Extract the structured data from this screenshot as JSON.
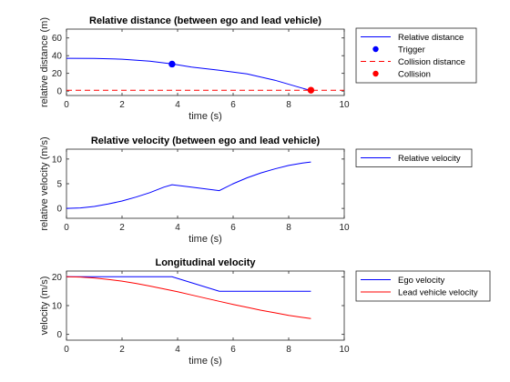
{
  "chart_data": [
    {
      "type": "line",
      "title": "Relative distance (between ego and lead vehicle)",
      "xlabel": "time (s)",
      "ylabel": "relative distance (m)",
      "xlim": [
        0,
        10
      ],
      "ylim": [
        -5,
        70
      ],
      "xticks": [
        0,
        2,
        4,
        6,
        8,
        10
      ],
      "yticks": [
        0,
        20,
        40,
        60
      ],
      "legend_position": "outside-right",
      "series": [
        {
          "name": "Relative distance",
          "style": "line",
          "color": "#0000ff",
          "x": [
            0,
            1,
            2,
            3,
            3.8,
            4.5,
            5.5,
            6.5,
            7.5,
            8.3,
            8.8
          ],
          "y": [
            37,
            36.9,
            36,
            33.8,
            30.6,
            27.2,
            23.6,
            19.3,
            12.3,
            5.0,
            0.5
          ]
        },
        {
          "name": "Trigger",
          "style": "marker",
          "color": "#0000ff",
          "x": [
            3.8
          ],
          "y": [
            30.5
          ]
        },
        {
          "name": "Collision distance",
          "style": "dashed",
          "color": "#ff0000",
          "x": [
            0,
            10
          ],
          "y": [
            1,
            1
          ]
        },
        {
          "name": "Collision",
          "style": "marker",
          "color": "#ff0000",
          "x": [
            8.8
          ],
          "y": [
            1
          ]
        }
      ]
    },
    {
      "type": "line",
      "title": "Relative velocity (between ego and lead vehicle)",
      "xlabel": "time (s)",
      "ylabel": "relative velocity (m/s)",
      "xlim": [
        0,
        10
      ],
      "ylim": [
        -2,
        12
      ],
      "xticks": [
        0,
        2,
        4,
        6,
        8,
        10
      ],
      "yticks": [
        0,
        5,
        10
      ],
      "legend_position": "outside-right",
      "series": [
        {
          "name": "Relative velocity",
          "style": "line",
          "color": "#0000ff",
          "x": [
            0,
            0.5,
            1,
            1.5,
            2,
            2.5,
            3,
            3.5,
            3.8,
            4.5,
            5.5,
            6,
            6.5,
            7,
            7.5,
            8,
            8.5,
            8.8
          ],
          "y": [
            0,
            0.1,
            0.4,
            0.9,
            1.5,
            2.3,
            3.2,
            4.3,
            4.8,
            4.3,
            3.6,
            5.0,
            6.2,
            7.2,
            8.0,
            8.7,
            9.2,
            9.4
          ]
        }
      ]
    },
    {
      "type": "line",
      "title": "Longitudinal velocity",
      "xlabel": "time (s)",
      "ylabel": "velocity (m/s)",
      "xlim": [
        0,
        10
      ],
      "ylim": [
        -2,
        22
      ],
      "xticks": [
        0,
        2,
        4,
        6,
        8,
        10
      ],
      "yticks": [
        0,
        10,
        20
      ],
      "legend_position": "outside-right",
      "series": [
        {
          "name": "Ego velocity",
          "style": "line",
          "color": "#0000ff",
          "x": [
            0,
            3.8,
            5.5,
            8.8
          ],
          "y": [
            20,
            20,
            15,
            15
          ]
        },
        {
          "name": "Lead vehicle velocity",
          "style": "line",
          "color": "#ff0000",
          "x": [
            0,
            0.5,
            1,
            1.5,
            2,
            2.5,
            3,
            3.5,
            4,
            4.5,
            5,
            5.5,
            6,
            6.5,
            7,
            7.5,
            8,
            8.5,
            8.8
          ],
          "y": [
            20,
            19.9,
            19.6,
            19.1,
            18.5,
            17.7,
            16.8,
            15.8,
            14.8,
            13.7,
            12.6,
            11.5,
            10.4,
            9.4,
            8.4,
            7.5,
            6.6,
            5.9,
            5.5
          ]
        }
      ]
    }
  ]
}
